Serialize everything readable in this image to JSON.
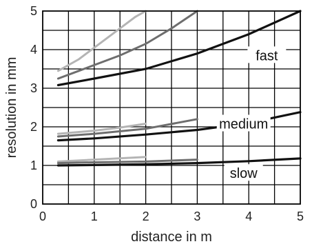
{
  "chart_data": {
    "type": "line",
    "xlabel": "distance in m",
    "ylabel": "resolution in mm",
    "xlim": [
      0,
      5
    ],
    "ylim": [
      0,
      5
    ],
    "xticks": [
      "0",
      "1",
      "2",
      "3",
      "4",
      "5"
    ],
    "yticks": [
      "0",
      "1",
      "2",
      "3",
      "4",
      "5"
    ],
    "grid": true,
    "groups": [
      {
        "label": "fast",
        "series": [
          {
            "color": "#b4b4b4",
            "x": [
              0.3,
              0.7,
              1.0,
              1.3,
              1.6,
              1.8,
              2.0
            ],
            "y": [
              3.45,
              3.75,
              4.05,
              4.35,
              4.65,
              4.85,
              5.0
            ]
          },
          {
            "color": "#6e6e6e",
            "x": [
              0.3,
              0.7,
              1.0,
              1.5,
              2.0,
              2.5,
              3.0
            ],
            "y": [
              3.25,
              3.45,
              3.6,
              3.85,
              4.15,
              4.55,
              5.0
            ]
          },
          {
            "color": "#111111",
            "x": [
              0.3,
              1.0,
              2.0,
              3.0,
              4.0,
              5.0
            ],
            "y": [
              3.08,
              3.25,
              3.5,
              3.9,
              4.4,
              5.0
            ]
          }
        ]
      },
      {
        "label": "medium",
        "series": [
          {
            "color": "#b4b4b4",
            "x": [
              0.3,
              1.0,
              1.5,
              2.0
            ],
            "y": [
              1.82,
              1.9,
              1.98,
              2.08
            ]
          },
          {
            "color": "#6e6e6e",
            "x": [
              0.3,
              1.0,
              2.0,
              3.0
            ],
            "y": [
              1.75,
              1.82,
              1.95,
              2.2
            ]
          },
          {
            "color": "#111111",
            "x": [
              0.3,
              1.0,
              2.0,
              3.0,
              4.0,
              5.0
            ],
            "y": [
              1.65,
              1.7,
              1.8,
              1.92,
              2.1,
              2.38
            ]
          }
        ]
      },
      {
        "label": "slow",
        "series": [
          {
            "color": "#b4b4b4",
            "x": [
              0.3,
              1.0,
              2.0
            ],
            "y": [
              1.1,
              1.15,
              1.22
            ]
          },
          {
            "color": "#6e6e6e",
            "x": [
              0.3,
              1.0,
              2.0,
              3.0
            ],
            "y": [
              1.06,
              1.08,
              1.1,
              1.15
            ]
          },
          {
            "color": "#111111",
            "x": [
              0.3,
              1.0,
              2.0,
              3.0,
              4.0,
              5.0
            ],
            "y": [
              1.0,
              1.01,
              1.03,
              1.06,
              1.11,
              1.18
            ]
          }
        ]
      }
    ]
  }
}
